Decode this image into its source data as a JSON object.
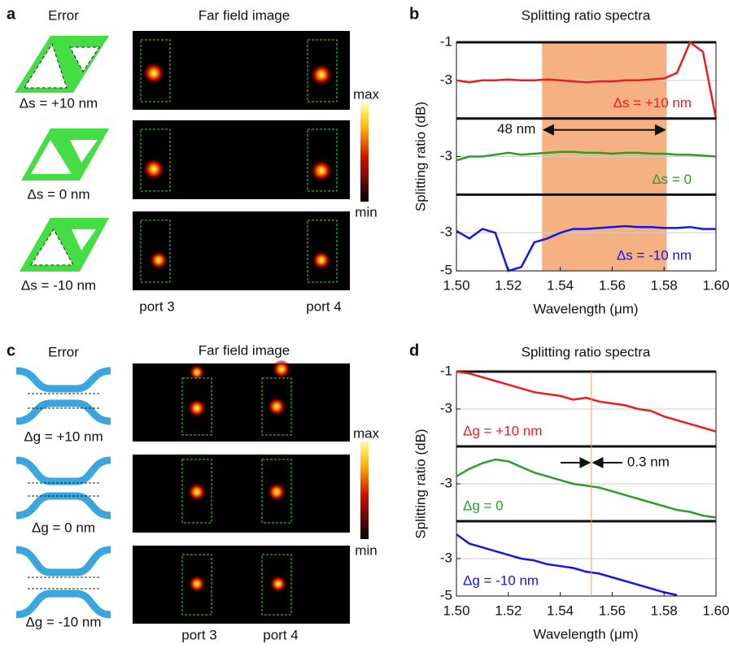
{
  "panels": {
    "a": {
      "label": "a",
      "error_title": "Error",
      "image_title": "Far field image",
      "rows": [
        "Δs = +10 nm",
        "Δs = 0 nm",
        "Δs = -10 nm"
      ],
      "ports": [
        "port 3",
        "port 4"
      ],
      "colorbar": [
        "max",
        "min"
      ]
    },
    "b": {
      "label": "b"
    },
    "c": {
      "label": "c",
      "error_title": "Error",
      "image_title": "Far field image",
      "rows": [
        "Δg = +10 nm",
        "Δg = 0 nm",
        "Δg = -10 nm"
      ],
      "ports": [
        "port 3",
        "port 4"
      ],
      "colorbar": [
        "max",
        "min"
      ]
    },
    "d": {
      "label": "d"
    }
  },
  "chart_data": [
    {
      "type": "line",
      "title": "Splitting ratio spectra",
      "x_label": "Wavelength (μm)",
      "y_label": "Splitting ratio (dB)",
      "x": [
        1.5,
        1.505,
        1.51,
        1.515,
        1.52,
        1.525,
        1.53,
        1.535,
        1.54,
        1.545,
        1.55,
        1.555,
        1.56,
        1.565,
        1.57,
        1.575,
        1.58,
        1.585,
        1.59,
        1.595,
        1.6
      ],
      "xlim": [
        1.5,
        1.6
      ],
      "xticks": [
        {
          "value": 1.5,
          "label": "1.50"
        },
        {
          "value": 1.52,
          "label": "1.52"
        },
        {
          "value": 1.54,
          "label": "1.54"
        },
        {
          "value": 1.56,
          "label": "1.56"
        },
        {
          "value": 1.58,
          "label": "1.58"
        },
        {
          "value": 1.6,
          "label": "1.60"
        }
      ],
      "legend": "lower right",
      "grid": true,
      "band": [
        1.533,
        1.581
      ],
      "band_color": "#f6b183",
      "annotation": "48 nm",
      "subplots": [
        {
          "ylim": [
            -5,
            -1
          ],
          "yticks": [
            -1,
            -3
          ],
          "series": [
            {
              "name": "Δs = +10 nm",
              "color": "#ee1c1c",
              "values": [
                -3.0,
                -3.1,
                -3.0,
                -3.0,
                -2.95,
                -3.0,
                -3.0,
                -2.95,
                -3.0,
                -3.05,
                -3.1,
                -3.05,
                -3.05,
                -3.0,
                -3.0,
                -2.95,
                -2.9,
                -2.6,
                -1.0,
                -1.5,
                -5
              ]
            }
          ]
        },
        {
          "ylim": [
            -5,
            -1
          ],
          "yticks": [
            -3
          ],
          "series": [
            {
              "name": "Δs = 0",
              "color": "#2a9d2a",
              "values": [
                -3.2,
                -3.0,
                -3.0,
                -2.9,
                -2.8,
                -2.9,
                -2.85,
                -2.8,
                -2.75,
                -2.75,
                -2.8,
                -2.8,
                -2.85,
                -2.8,
                -2.8,
                -2.85,
                -2.85,
                -2.9,
                -2.9,
                -2.95,
                -3.0
              ]
            }
          ]
        },
        {
          "ylim": [
            -5,
            -1
          ],
          "yticks": [
            -3,
            -5
          ],
          "series": [
            {
              "name": "Δs = -10 nm",
              "color": "#1414e6",
              "values": [
                -2.9,
                -3.3,
                -2.8,
                -3.0,
                -5,
                -4.8,
                -3.5,
                -3.3,
                -3.0,
                -2.8,
                -2.8,
                -2.75,
                -2.7,
                -2.65,
                -2.7,
                -2.7,
                -2.75,
                -2.75,
                -2.7,
                -2.8,
                -2.8
              ]
            }
          ]
        }
      ]
    },
    {
      "type": "line",
      "title": "Splitting ratio spectra",
      "x_label": "Wavelength (μm)",
      "y_label": "Splitting ratio (dB)",
      "x": [
        1.5,
        1.505,
        1.51,
        1.515,
        1.52,
        1.525,
        1.53,
        1.535,
        1.54,
        1.545,
        1.55,
        1.555,
        1.56,
        1.565,
        1.57,
        1.575,
        1.58,
        1.585,
        1.59,
        1.595,
        1.6
      ],
      "xlim": [
        1.5,
        1.6
      ],
      "xticks": [
        {
          "value": 1.5,
          "label": "1.50"
        },
        {
          "value": 1.52,
          "label": "1.52"
        },
        {
          "value": 1.54,
          "label": "1.54"
        },
        {
          "value": 1.56,
          "label": "1.56"
        },
        {
          "value": 1.58,
          "label": "1.58"
        },
        {
          "value": 1.6,
          "label": "1.60"
        }
      ],
      "legend": "lower left",
      "grid": true,
      "marker_x": 1.552,
      "marker_color": "#f0a060",
      "annotation": "0.3 nm",
      "subplots": [
        {
          "ylim": [
            -5,
            -1
          ],
          "yticks": [
            -1,
            -3
          ],
          "series": [
            {
              "name": "Δg = +10 nm",
              "color": "#ee1c1c",
              "values": [
                -1.0,
                -1.1,
                -1.3,
                -1.5,
                -1.7,
                -1.9,
                -2.1,
                -2.2,
                -2.3,
                -2.5,
                -2.4,
                -2.6,
                -2.7,
                -2.8,
                -3.0,
                -3.1,
                -3.4,
                -3.6,
                -3.8,
                -4.0,
                -4.2
              ]
            }
          ]
        },
        {
          "ylim": [
            -5,
            -1
          ],
          "yticks": [
            -3
          ],
          "series": [
            {
              "name": "Δg = 0",
              "color": "#2a9d2a",
              "values": [
                -2.6,
                -2.2,
                -1.9,
                -1.7,
                -1.8,
                -2.1,
                -2.4,
                -2.6,
                -2.8,
                -3.0,
                -3.1,
                -3.2,
                -3.4,
                -3.6,
                -3.8,
                -4.0,
                -4.2,
                -4.4,
                -4.5,
                -4.7,
                -4.8
              ]
            }
          ]
        },
        {
          "ylim": [
            -5,
            -1
          ],
          "yticks": [
            -3,
            -5
          ],
          "series": [
            {
              "name": "Δg = -10 nm",
              "color": "#1414e6",
              "values": [
                -1.7,
                -2.2,
                -2.4,
                -2.6,
                -2.8,
                -3.0,
                -3.1,
                -3.3,
                -3.4,
                -3.5,
                -3.7,
                -3.8,
                -4.0,
                -4.2,
                -4.4,
                -4.6,
                -4.8,
                -4.95,
                null,
                null,
                null
              ]
            }
          ]
        }
      ]
    }
  ]
}
